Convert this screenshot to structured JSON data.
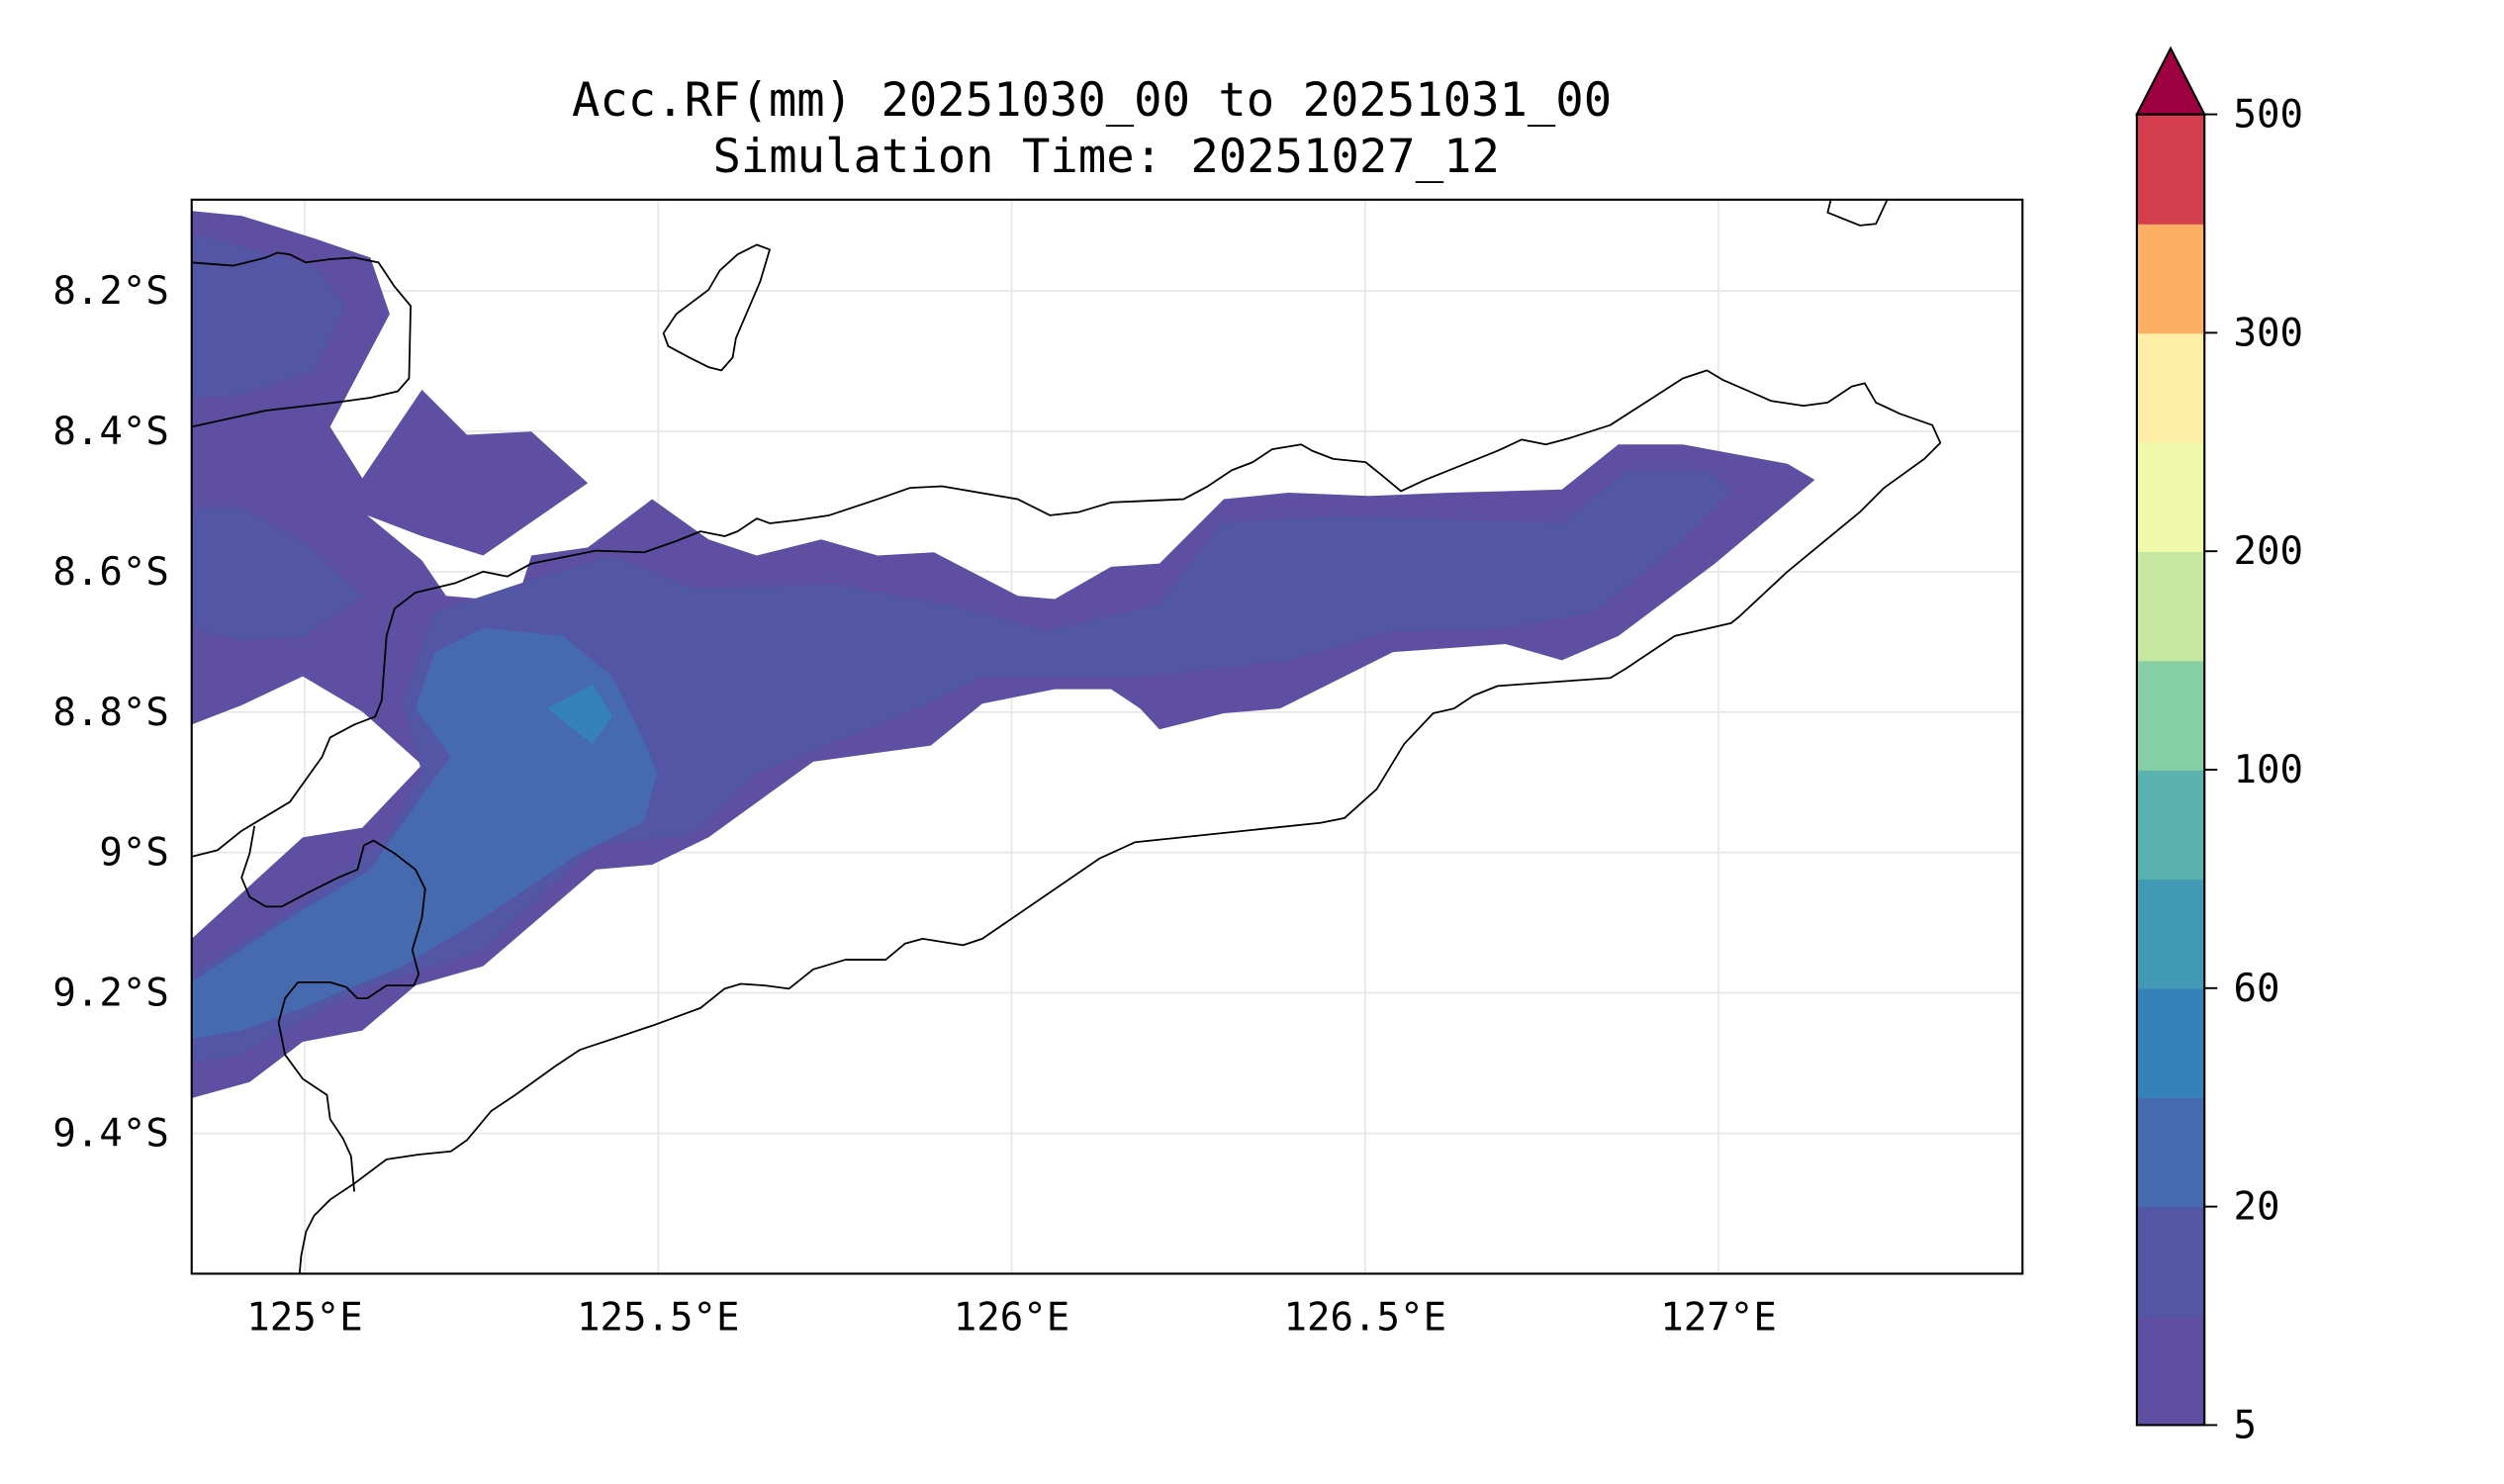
{
  "chart_data": {
    "type": "contourf",
    "title": "Acc.RF(mm) 20251030_00 to 20251031_00",
    "subtitle": "Simulation Time: 20251027_12",
    "xlabel": "",
    "ylabel": "",
    "xlim": [
      124.84,
      127.43
    ],
    "ylim": [
      -9.6,
      -8.07
    ],
    "grid": true,
    "x_ticks": [
      {
        "value": 125.0,
        "label": "125°E"
      },
      {
        "value": 125.5,
        "label": "125.5°E"
      },
      {
        "value": 126.0,
        "label": "126°E"
      },
      {
        "value": 126.5,
        "label": "126.5°E"
      },
      {
        "value": 127.0,
        "label": "127°E"
      }
    ],
    "y_ticks": [
      {
        "value": -8.2,
        "label": "8.2°S"
      },
      {
        "value": -8.4,
        "label": "8.4°S"
      },
      {
        "value": -8.6,
        "label": "8.6°S"
      },
      {
        "value": -8.8,
        "label": "8.8°S"
      },
      {
        "value": -9.0,
        "label": "9°S"
      },
      {
        "value": -9.2,
        "label": "9.2°S"
      },
      {
        "value": -9.4,
        "label": "9.4°S"
      }
    ],
    "colorbar": {
      "extend": "max",
      "band_colors": [
        "#5e4fa2",
        "#5356a5",
        "#466ab0",
        "#3582ba",
        "#4199b6",
        "#59b2ad",
        "#86cfa5",
        "#c5e79f",
        "#f0f8a9",
        "#feeea5",
        "#fdb063",
        "#d53e4f"
      ],
      "extend_color": "#9e0142",
      "ticks": [
        {
          "value": 5,
          "label": "5",
          "band_index": 0
        },
        {
          "value": 20,
          "label": "20",
          "band_index": 2
        },
        {
          "value": 60,
          "label": "60",
          "band_index": 4
        },
        {
          "value": 100,
          "label": "100",
          "band_index": 6
        },
        {
          "value": 200,
          "label": "200",
          "band_index": 8
        },
        {
          "value": 300,
          "label": "300",
          "band_index": 10
        },
        {
          "value": 500,
          "label": "500",
          "band_index": 12
        }
      ]
    },
    "rainfall_regions": [
      {
        "range_mm": "5-10",
        "color": "#5e4fa2"
      },
      {
        "range_mm": "10-20",
        "color": "#5356a5"
      },
      {
        "range_mm": "20-40",
        "color": "#466ab0"
      },
      {
        "range_mm": "40-60",
        "color": "#3582ba"
      }
    ]
  }
}
